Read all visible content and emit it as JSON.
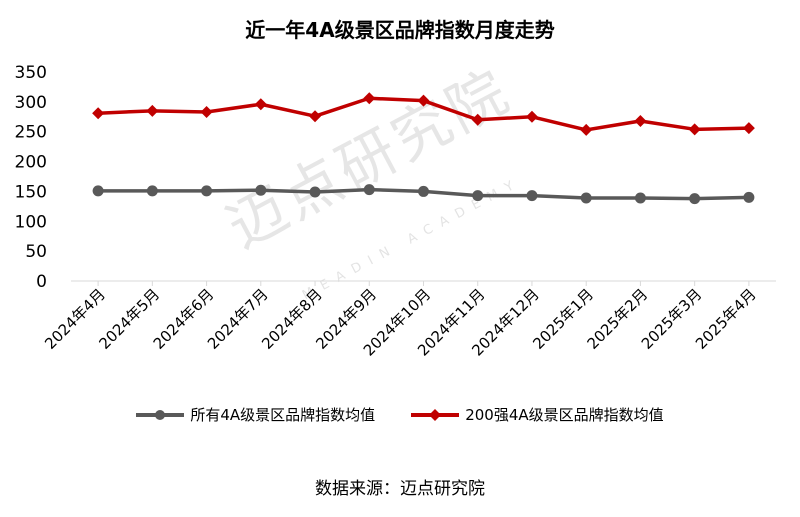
{
  "chart_data": {
    "type": "line",
    "title": "近一年4A级景区品牌指数月度走势",
    "categories": [
      "2024年4月",
      "2024年5月",
      "2024年6月",
      "2024年7月",
      "2024年8月",
      "2024年9月",
      "2024年10月",
      "2024年11月",
      "2024年12月",
      "2025年1月",
      "2025年2月",
      "2025年3月",
      "2025年4月"
    ],
    "series": [
      {
        "name": "所有4A级景区品牌指数均值",
        "color": "#595959",
        "values": [
          151,
          151,
          151,
          152,
          149,
          153,
          150,
          143,
          143,
          139,
          139,
          138,
          140
        ]
      },
      {
        "name": "200强4A级景区品牌指数均值",
        "color": "#c00000",
        "values": [
          281,
          285,
          283,
          296,
          276,
          306,
          302,
          270,
          275,
          253,
          268,
          254,
          256
        ]
      }
    ],
    "ylim": [
      0,
      350
    ],
    "yticks": [
      0,
      50,
      100,
      150,
      200,
      250,
      300,
      350
    ],
    "xlabel": "",
    "ylabel": "",
    "grid": false,
    "legend_position": "bottom"
  },
  "watermark": {
    "text": "迈点研究院",
    "subtext": "MEADIN ACADEMY"
  },
  "source_note": "数据来源：迈点研究院"
}
